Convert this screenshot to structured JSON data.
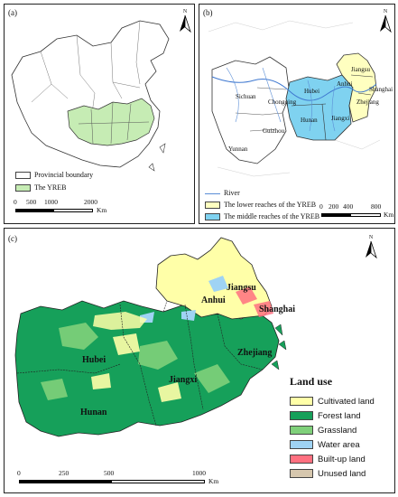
{
  "panel_a": {
    "label": "(a)",
    "north": "N",
    "legend": [
      {
        "label": "Provincial boundary",
        "color": "#ffffff"
      },
      {
        "label": "The YREB",
        "color": "#c6ecb4"
      }
    ],
    "scale_ticks": [
      "0",
      "500",
      "1000",
      "2000"
    ],
    "scale_unit": "Km"
  },
  "panel_b": {
    "label": "(b)",
    "north": "N",
    "provinces": [
      "Jiangsu",
      "Anhui",
      "Shanghai",
      "Zhejiang",
      "Hubei",
      "Hunan",
      "Jiangxi",
      "Chongqing",
      "Sichuan",
      "Guizhou",
      "Yunnan"
    ],
    "legend": [
      {
        "label": "River",
        "color": "#5b8ed6",
        "kind": "line"
      },
      {
        "label": "The lower reaches of the YREB",
        "color": "#ffffc0",
        "kind": "box"
      },
      {
        "label": "The middle reaches of the YREB",
        "color": "#7fd2f0",
        "kind": "box"
      }
    ],
    "scale_ticks": [
      "0",
      "200",
      "400",
      "800"
    ],
    "scale_unit": "Km"
  },
  "panel_c": {
    "label": "(c)",
    "north": "N",
    "provinces": [
      "Jiangsu",
      "Anhui",
      "Shanghai",
      "Hubei",
      "Zhejiang",
      "Jiangxi",
      "Hunan"
    ],
    "legend_title": "Land use",
    "legend": [
      {
        "label": "Cultivated land",
        "color": "#ffffa8"
      },
      {
        "label": "Forest land",
        "color": "#16a05a"
      },
      {
        "label": "Grassland",
        "color": "#7fd07a"
      },
      {
        "label": "Water area",
        "color": "#9fd3f4"
      },
      {
        "label": "Built-up land",
        "color": "#ff7080"
      },
      {
        "label": "Unused land",
        "color": "#d6c7ae"
      }
    ],
    "scale_ticks": [
      "0",
      "250",
      "500",
      "1000"
    ],
    "scale_unit": "Km"
  }
}
